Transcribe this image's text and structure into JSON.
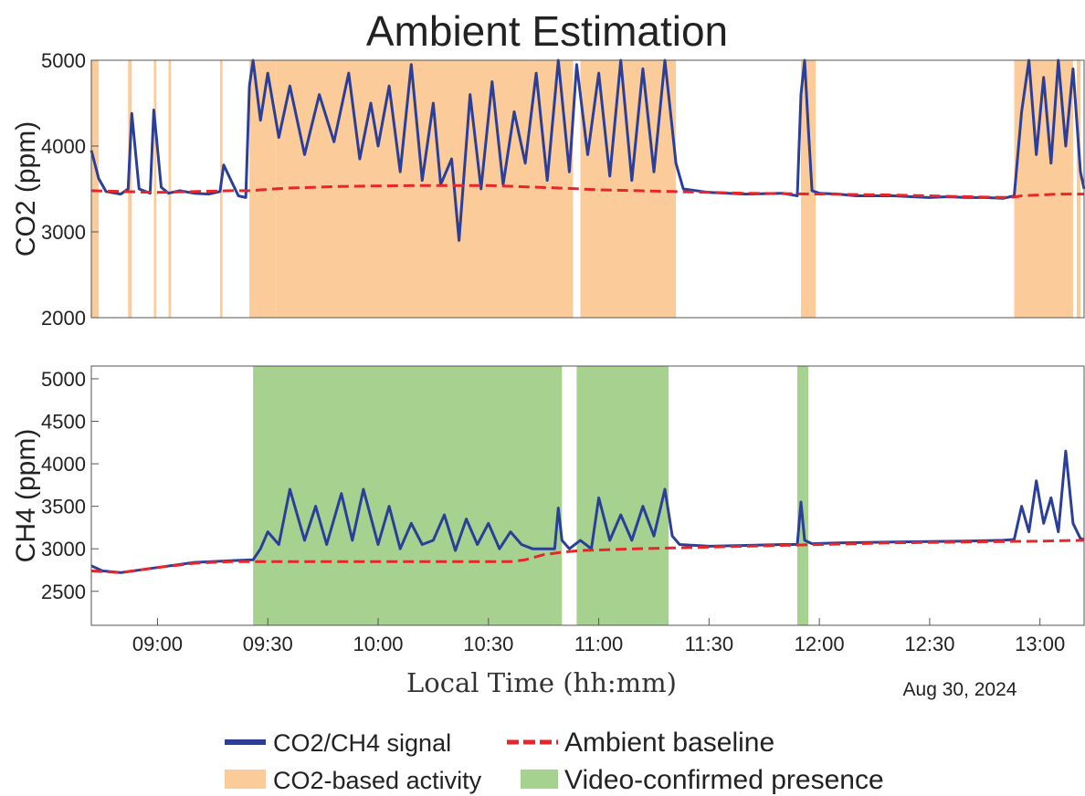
{
  "title": "Ambient Estimation",
  "date_label": "Aug 30, 2024",
  "colors": {
    "signal": "#2B3F99",
    "baseline": "#E8262A",
    "activity": "#FBCB99",
    "presence": "#A7D18E"
  },
  "legend": {
    "signal": "CO2/CH4 signal",
    "baseline": "Ambient baseline",
    "activity": "CO2-based activity",
    "presence": "Video-confirmed presence"
  },
  "chart_data": [
    {
      "type": "line",
      "name": "co2-panel",
      "ylabel": "CO2 (ppm)",
      "xlabel": "",
      "xlim": [
        "08:42",
        "13:12"
      ],
      "ylim": [
        2000,
        5000
      ],
      "yticks": [
        2000,
        3000,
        4000,
        5000
      ],
      "xticks": [],
      "grid": false,
      "activity_intervals": [
        [
          "08:42",
          "08:44"
        ],
        [
          "08:52",
          "08:53"
        ],
        [
          "08:59",
          "08:59:40"
        ],
        [
          "09:03",
          "09:03:40"
        ],
        [
          "09:17",
          "09:17:40"
        ],
        [
          "09:25",
          "09:32"
        ],
        [
          "09:32",
          "10:53"
        ],
        [
          "10:55",
          "11:21"
        ],
        [
          "11:55",
          "11:59"
        ],
        [
          "12:53",
          "13:09"
        ],
        [
          "13:10",
          "13:11"
        ]
      ],
      "signal": {
        "x": [
          "08:42",
          "08:44",
          "08:46",
          "08:50",
          "08:52",
          "08:53",
          "08:55",
          "08:58",
          "08:59",
          "09:01",
          "09:03",
          "09:06",
          "09:10",
          "09:14",
          "09:17",
          "09:18",
          "09:22",
          "09:24",
          "09:25",
          "09:26",
          "09:28",
          "09:30",
          "09:33",
          "09:36",
          "09:40",
          "09:44",
          "09:48",
          "09:52",
          "09:55",
          "09:58",
          "10:00",
          "10:03",
          "10:06",
          "10:09",
          "10:12",
          "10:15",
          "10:17",
          "10:20",
          "10:22",
          "10:25",
          "10:28",
          "10:31",
          "10:34",
          "10:37",
          "10:40",
          "10:43",
          "10:46",
          "10:49",
          "10:52",
          "10:54",
          "10:57",
          "11:00",
          "11:03",
          "11:06",
          "11:09",
          "11:12",
          "11:15",
          "11:18",
          "11:20",
          "11:21",
          "11:23",
          "11:30",
          "11:40",
          "11:50",
          "11:54",
          "11:55",
          "11:56",
          "11:57",
          "11:58",
          "12:00",
          "12:05",
          "12:10",
          "12:15",
          "12:20",
          "12:25",
          "12:30",
          "12:35",
          "12:40",
          "12:45",
          "12:50",
          "12:53",
          "12:55",
          "12:57",
          "12:59",
          "13:01",
          "13:03",
          "13:05",
          "13:07",
          "13:09",
          "13:11",
          "13:12"
        ],
        "y": [
          3950,
          3620,
          3470,
          3440,
          3500,
          4380,
          3500,
          3450,
          4420,
          3520,
          3450,
          3480,
          3450,
          3440,
          3470,
          3780,
          3420,
          3400,
          4700,
          5000,
          4300,
          4850,
          4100,
          4700,
          3900,
          4600,
          4050,
          4850,
          3850,
          4500,
          4000,
          4700,
          3700,
          4950,
          3600,
          4500,
          3550,
          3850,
          2900,
          4600,
          3500,
          4750,
          3550,
          4400,
          3800,
          4850,
          3600,
          5000,
          3700,
          4950,
          3900,
          4850,
          3650,
          5000,
          3600,
          4900,
          3700,
          5000,
          4200,
          3800,
          3500,
          3460,
          3440,
          3450,
          3420,
          4600,
          5000,
          4200,
          3480,
          3450,
          3440,
          3420,
          3420,
          3420,
          3410,
          3400,
          3410,
          3400,
          3400,
          3390,
          3420,
          4400,
          5000,
          3900,
          4800,
          3800,
          5000,
          4000,
          4900,
          3700,
          3500
        ]
      },
      "baseline": {
        "x": [
          "08:42",
          "09:00",
          "09:20",
          "09:25",
          "09:35",
          "09:50",
          "10:10",
          "10:30",
          "10:50",
          "11:00",
          "11:20",
          "11:40",
          "12:00",
          "12:20",
          "12:40",
          "12:52",
          "12:55",
          "13:05",
          "13:12"
        ],
        "y": [
          3480,
          3460,
          3480,
          3480,
          3510,
          3530,
          3540,
          3540,
          3510,
          3490,
          3470,
          3450,
          3440,
          3430,
          3410,
          3400,
          3420,
          3440,
          3440
        ]
      }
    },
    {
      "type": "line",
      "name": "ch4-panel",
      "ylabel": "CH4 (ppm)",
      "xlabel": "Local Time (hh:mm)",
      "xlim": [
        "08:42",
        "13:12"
      ],
      "ylim": [
        2100,
        5150
      ],
      "yticks": [
        2500,
        3000,
        3500,
        4000,
        4500,
        5000
      ],
      "xticks": [
        "09:00",
        "09:30",
        "10:00",
        "10:30",
        "11:00",
        "11:30",
        "12:00",
        "12:30",
        "13:00"
      ],
      "grid": false,
      "presence_intervals": [
        [
          "09:26",
          "10:50"
        ],
        [
          "10:54",
          "11:19"
        ],
        [
          "11:54",
          "11:57"
        ]
      ],
      "signal": {
        "x": [
          "08:42",
          "08:45",
          "08:50",
          "09:00",
          "09:10",
          "09:20",
          "09:26",
          "09:28",
          "09:30",
          "09:33",
          "09:36",
          "09:40",
          "09:43",
          "09:46",
          "09:50",
          "09:53",
          "09:56",
          "10:00",
          "10:03",
          "10:06",
          "10:09",
          "10:12",
          "10:15",
          "10:18",
          "10:21",
          "10:24",
          "10:27",
          "10:30",
          "10:33",
          "10:36",
          "10:39",
          "10:42",
          "10:45",
          "10:48",
          "10:49",
          "10:50",
          "10:52",
          "10:55",
          "10:58",
          "11:00",
          "11:03",
          "11:06",
          "11:09",
          "11:12",
          "11:15",
          "11:18",
          "11:20",
          "11:22",
          "11:30",
          "11:40",
          "11:50",
          "11:54",
          "11:55",
          "11:56",
          "11:58",
          "12:05",
          "12:20",
          "12:40",
          "12:50",
          "12:53",
          "12:55",
          "12:57",
          "12:59",
          "13:01",
          "13:03",
          "13:05",
          "13:07",
          "13:09",
          "13:11",
          "13:12"
        ],
        "y": [
          2800,
          2740,
          2720,
          2780,
          2840,
          2860,
          2870,
          3000,
          3200,
          3050,
          3700,
          3100,
          3500,
          3050,
          3650,
          3100,
          3700,
          3050,
          3500,
          3000,
          3300,
          3050,
          3100,
          3400,
          2980,
          3350,
          3050,
          3300,
          3000,
          3200,
          3050,
          3000,
          3000,
          3000,
          3480,
          3100,
          3000,
          3100,
          3000,
          3600,
          3100,
          3400,
          3100,
          3500,
          3150,
          3700,
          3150,
          3050,
          3030,
          3040,
          3050,
          3050,
          3550,
          3100,
          3060,
          3070,
          3080,
          3090,
          3100,
          3110,
          3500,
          3200,
          3800,
          3300,
          3600,
          3200,
          4150,
          3300,
          3120,
          3110
        ]
      },
      "baseline": {
        "x": [
          "08:42",
          "08:50",
          "09:00",
          "09:10",
          "09:20",
          "09:26",
          "09:40",
          "10:00",
          "10:20",
          "10:36",
          "10:40",
          "10:45",
          "10:50",
          "10:55",
          "11:10",
          "11:20",
          "11:40",
          "12:00",
          "12:20",
          "12:40",
          "13:00",
          "13:12"
        ],
        "y": [
          2740,
          2720,
          2780,
          2830,
          2850,
          2850,
          2850,
          2850,
          2850,
          2850,
          2870,
          2930,
          2960,
          2980,
          3000,
          3010,
          3030,
          3050,
          3070,
          3080,
          3090,
          3100
        ]
      }
    }
  ]
}
